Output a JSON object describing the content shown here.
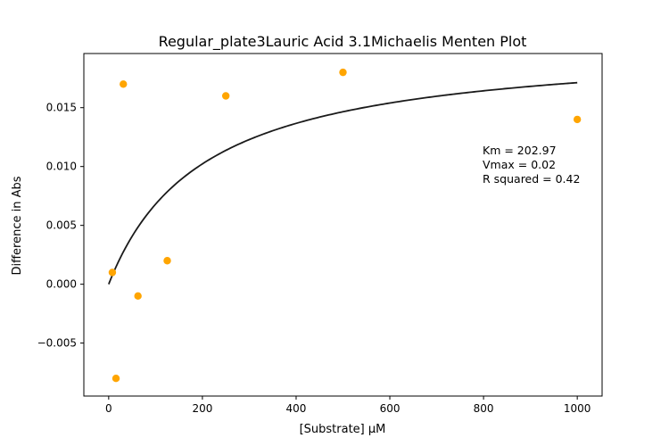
{
  "chart_data": {
    "type": "scatter",
    "title": "Regular_plate3Lauric Acid 3.1Michaelis Menten Plot",
    "xlabel": "[Substrate] µM",
    "ylabel": "Difference in Abs",
    "xlim": [
      -53,
      1053
    ],
    "ylim": [
      -0.0095,
      0.0196
    ],
    "xticks": [
      0,
      200,
      400,
      600,
      800,
      1000
    ],
    "xtick_labels": [
      "0",
      "200",
      "400",
      "600",
      "800",
      "1000"
    ],
    "yticks": [
      -0.005,
      0.0,
      0.005,
      0.01,
      0.015
    ],
    "ytick_labels": [
      "−0.005",
      "0.000",
      "0.005",
      "0.010",
      "0.015"
    ],
    "grid": false,
    "scatter": {
      "color": "#ffa500",
      "points": [
        {
          "x": 7.8,
          "y": 0.001
        },
        {
          "x": 15.6,
          "y": -0.008
        },
        {
          "x": 31.25,
          "y": 0.017
        },
        {
          "x": 62.5,
          "y": -0.001
        },
        {
          "x": 125,
          "y": 0.002
        },
        {
          "x": 250,
          "y": 0.016
        },
        {
          "x": 500,
          "y": 0.018
        },
        {
          "x": 1000,
          "y": 0.014
        }
      ]
    },
    "fit": {
      "color": "#1a1a1a",
      "km": 202.97,
      "vmax": 0.0206,
      "x_range": [
        0,
        1000
      ]
    },
    "annotation": [
      "Km = 202.97",
      "Vmax = 0.02",
      "R squared = 0.42"
    ]
  }
}
